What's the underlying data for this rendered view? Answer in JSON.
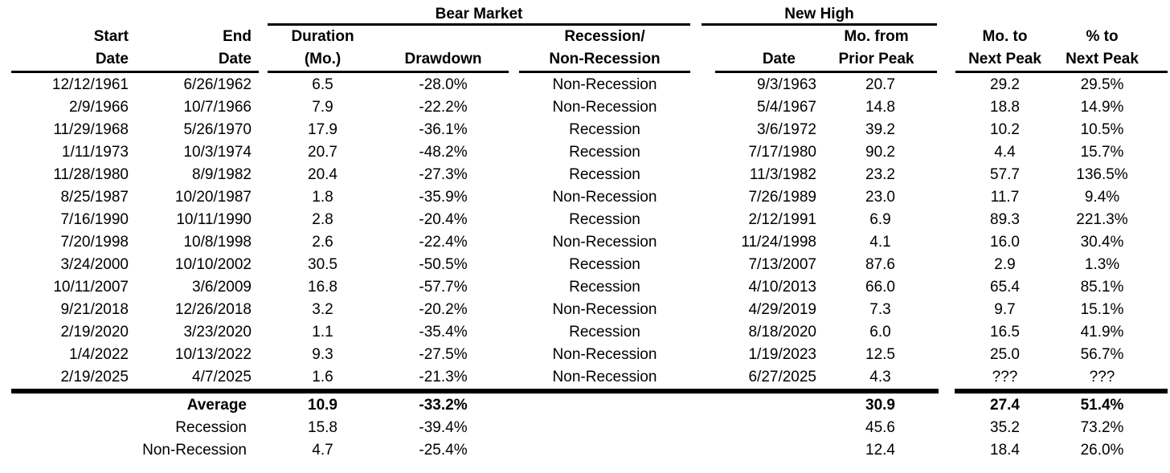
{
  "colors": {
    "text": "#000000",
    "line": "#000000",
    "background": "#ffffff"
  },
  "table": {
    "group_headers": [
      {
        "label": "Bear Market"
      },
      {
        "label": "New High"
      }
    ],
    "columns": [
      {
        "line1": "Start",
        "line2": "Date"
      },
      {
        "line1": "End",
        "line2": "Date"
      },
      {
        "line1": "Duration",
        "line2": "(Mo.)"
      },
      {
        "line1": "",
        "line2": "Drawdown"
      },
      {
        "line1": "Recession/",
        "line2": "Non-Recession"
      },
      {
        "line1": "",
        "line2": "Date"
      },
      {
        "line1": "Mo. from",
        "line2": "Prior Peak"
      },
      {
        "line1": "Mo. to",
        "line2": "Next Peak"
      },
      {
        "line1": "% to",
        "line2": "Next Peak"
      }
    ],
    "rows": [
      [
        "12/12/1961",
        "6/26/1962",
        "6.5",
        "-28.0%",
        "Non-Recession",
        "9/3/1963",
        "20.7",
        "29.2",
        "29.5%"
      ],
      [
        "2/9/1966",
        "10/7/1966",
        "7.9",
        "-22.2%",
        "Non-Recession",
        "5/4/1967",
        "14.8",
        "18.8",
        "14.9%"
      ],
      [
        "11/29/1968",
        "5/26/1970",
        "17.9",
        "-36.1%",
        "Recession",
        "3/6/1972",
        "39.2",
        "10.2",
        "10.5%"
      ],
      [
        "1/11/1973",
        "10/3/1974",
        "20.7",
        "-48.2%",
        "Recession",
        "7/17/1980",
        "90.2",
        "4.4",
        "15.7%"
      ],
      [
        "11/28/1980",
        "8/9/1982",
        "20.4",
        "-27.3%",
        "Recession",
        "11/3/1982",
        "23.2",
        "57.7",
        "136.5%"
      ],
      [
        "8/25/1987",
        "10/20/1987",
        "1.8",
        "-35.9%",
        "Non-Recession",
        "7/26/1989",
        "23.0",
        "11.7",
        "9.4%"
      ],
      [
        "7/16/1990",
        "10/11/1990",
        "2.8",
        "-20.4%",
        "Recession",
        "2/12/1991",
        "6.9",
        "89.3",
        "221.3%"
      ],
      [
        "7/20/1998",
        "10/8/1998",
        "2.6",
        "-22.4%",
        "Non-Recession",
        "11/24/1998",
        "4.1",
        "16.0",
        "30.4%"
      ],
      [
        "3/24/2000",
        "10/10/2002",
        "30.5",
        "-50.5%",
        "Recession",
        "7/13/2007",
        "87.6",
        "2.9",
        "1.3%"
      ],
      [
        "10/11/2007",
        "3/6/2009",
        "16.8",
        "-57.7%",
        "Recession",
        "4/10/2013",
        "66.0",
        "65.4",
        "85.1%"
      ],
      [
        "9/21/2018",
        "12/26/2018",
        "3.2",
        "-20.2%",
        "Non-Recession",
        "4/29/2019",
        "7.3",
        "9.7",
        "15.1%"
      ],
      [
        "2/19/2020",
        "3/23/2020",
        "1.1",
        "-35.4%",
        "Recession",
        "8/18/2020",
        "6.0",
        "16.5",
        "41.9%"
      ],
      [
        "1/4/2022",
        "10/13/2022",
        "9.3",
        "-27.5%",
        "Non-Recession",
        "1/19/2023",
        "12.5",
        "25.0",
        "56.7%"
      ],
      [
        "2/19/2025",
        "4/7/2025",
        "1.6",
        "-21.3%",
        "Non-Recession",
        "6/27/2025",
        "4.3",
        "???",
        "???"
      ]
    ],
    "summary": [
      {
        "label": "Average",
        "duration": "10.9",
        "drawdown": "-33.2%",
        "prior_peak": "30.9",
        "next_peak_mo": "27.4",
        "next_peak_pct": "51.4%"
      },
      {
        "label": "Recession",
        "duration": "15.8",
        "drawdown": "-39.4%",
        "prior_peak": "45.6",
        "next_peak_mo": "35.2",
        "next_peak_pct": "73.2%"
      },
      {
        "label": "Non-Recession",
        "duration": "4.7",
        "drawdown": "-25.4%",
        "prior_peak": "12.4",
        "next_peak_mo": "18.4",
        "next_peak_pct": "26.0%"
      }
    ]
  }
}
